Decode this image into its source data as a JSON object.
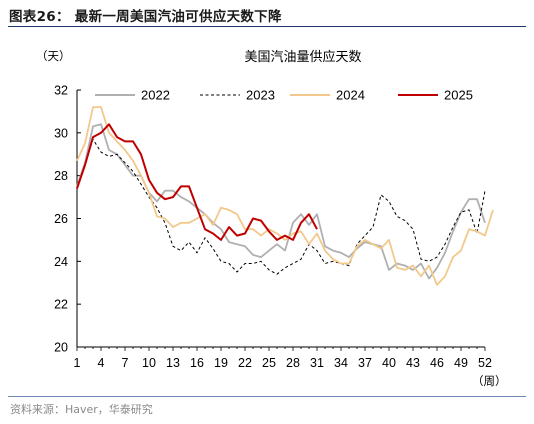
{
  "caption": "图表26：  最新一周美国汽油可供应天数下降",
  "source": "资料来源：Haver，华泰研究",
  "chart_data": {
    "type": "line",
    "title": "美国汽油量供应天数",
    "ylabel": "（天）",
    "xlabel": "（周）",
    "ylim": [
      20,
      32
    ],
    "xlim": [
      1,
      52
    ],
    "yticks": [
      20,
      22,
      24,
      26,
      28,
      30,
      32
    ],
    "xticks": [
      1,
      4,
      7,
      10,
      13,
      16,
      19,
      22,
      25,
      28,
      31,
      34,
      37,
      40,
      43,
      46,
      49,
      52
    ],
    "legend_position": "top",
    "grid": false,
    "series": [
      {
        "name": "2022",
        "color": "#b0b0b0",
        "style": "solid",
        "values": [
          27.5,
          28.6,
          30.3,
          30.4,
          29.2,
          29.0,
          28.5,
          28.0,
          28.0,
          27.2,
          26.8,
          27.3,
          27.3,
          27.0,
          26.8,
          26.5,
          26.2,
          25.8,
          25.5,
          24.9,
          24.8,
          24.7,
          24.3,
          24.2,
          24.5,
          24.8,
          24.5,
          25.8,
          26.2,
          25.7,
          26.2,
          24.7,
          24.5,
          24.4,
          24.2,
          24.6,
          24.9,
          24.8,
          24.7,
          23.6,
          23.9,
          23.8,
          23.6,
          23.9,
          23.2,
          23.7,
          24.4,
          25.4,
          26.3,
          26.9,
          26.9,
          25.8
        ]
      },
      {
        "name": "2023",
        "color": "#000000",
        "style": "dashed",
        "values": [
          27.4,
          28.5,
          29.7,
          29.1,
          28.9,
          29.0,
          28.6,
          28.2,
          27.6,
          27.0,
          26.5,
          25.8,
          24.7,
          24.5,
          24.9,
          24.4,
          25.1,
          24.6,
          24.0,
          23.9,
          23.5,
          23.9,
          23.9,
          24.0,
          23.6,
          23.4,
          23.7,
          23.9,
          24.1,
          24.8,
          24.5,
          23.9,
          24.0,
          23.9,
          23.8,
          24.8,
          25.2,
          25.6,
          27.1,
          26.8,
          26.1,
          25.9,
          25.5,
          24.1,
          24.0,
          24.2,
          24.8,
          25.6,
          26.3,
          26.4,
          25.3,
          27.3
        ]
      },
      {
        "name": "2024",
        "color": "#f2c88c",
        "style": "solid",
        "values": [
          28.7,
          29.5,
          31.2,
          31.2,
          30.0,
          29.6,
          29.2,
          28.7,
          28.0,
          27.2,
          26.1,
          26.0,
          25.6,
          25.8,
          25.8,
          26.0,
          26.2,
          25.7,
          26.5,
          26.4,
          26.2,
          25.5,
          25.5,
          25.2,
          25.5,
          25.3,
          25.0,
          25.3,
          25.4,
          24.8,
          25.3,
          24.5,
          24.1,
          23.9,
          23.9,
          24.7,
          25.0,
          24.8,
          24.6,
          25.0,
          23.7,
          23.6,
          23.8,
          23.3,
          23.8,
          22.9,
          23.3,
          24.2,
          24.5,
          25.5,
          25.4,
          25.2,
          26.4
        ]
      },
      {
        "name": "2025",
        "color": "#c00000",
        "style": "solid",
        "values": [
          27.4,
          28.5,
          29.8,
          30.0,
          30.4,
          29.8,
          29.6,
          29.6,
          29.0,
          27.8,
          27.2,
          26.9,
          27.0,
          27.5,
          27.5,
          26.5,
          25.5,
          25.3,
          25.0,
          25.6,
          25.2,
          25.3,
          26.0,
          25.9,
          25.4,
          25.0,
          25.2,
          25.0,
          25.8,
          26.2,
          25.5
        ]
      }
    ]
  }
}
